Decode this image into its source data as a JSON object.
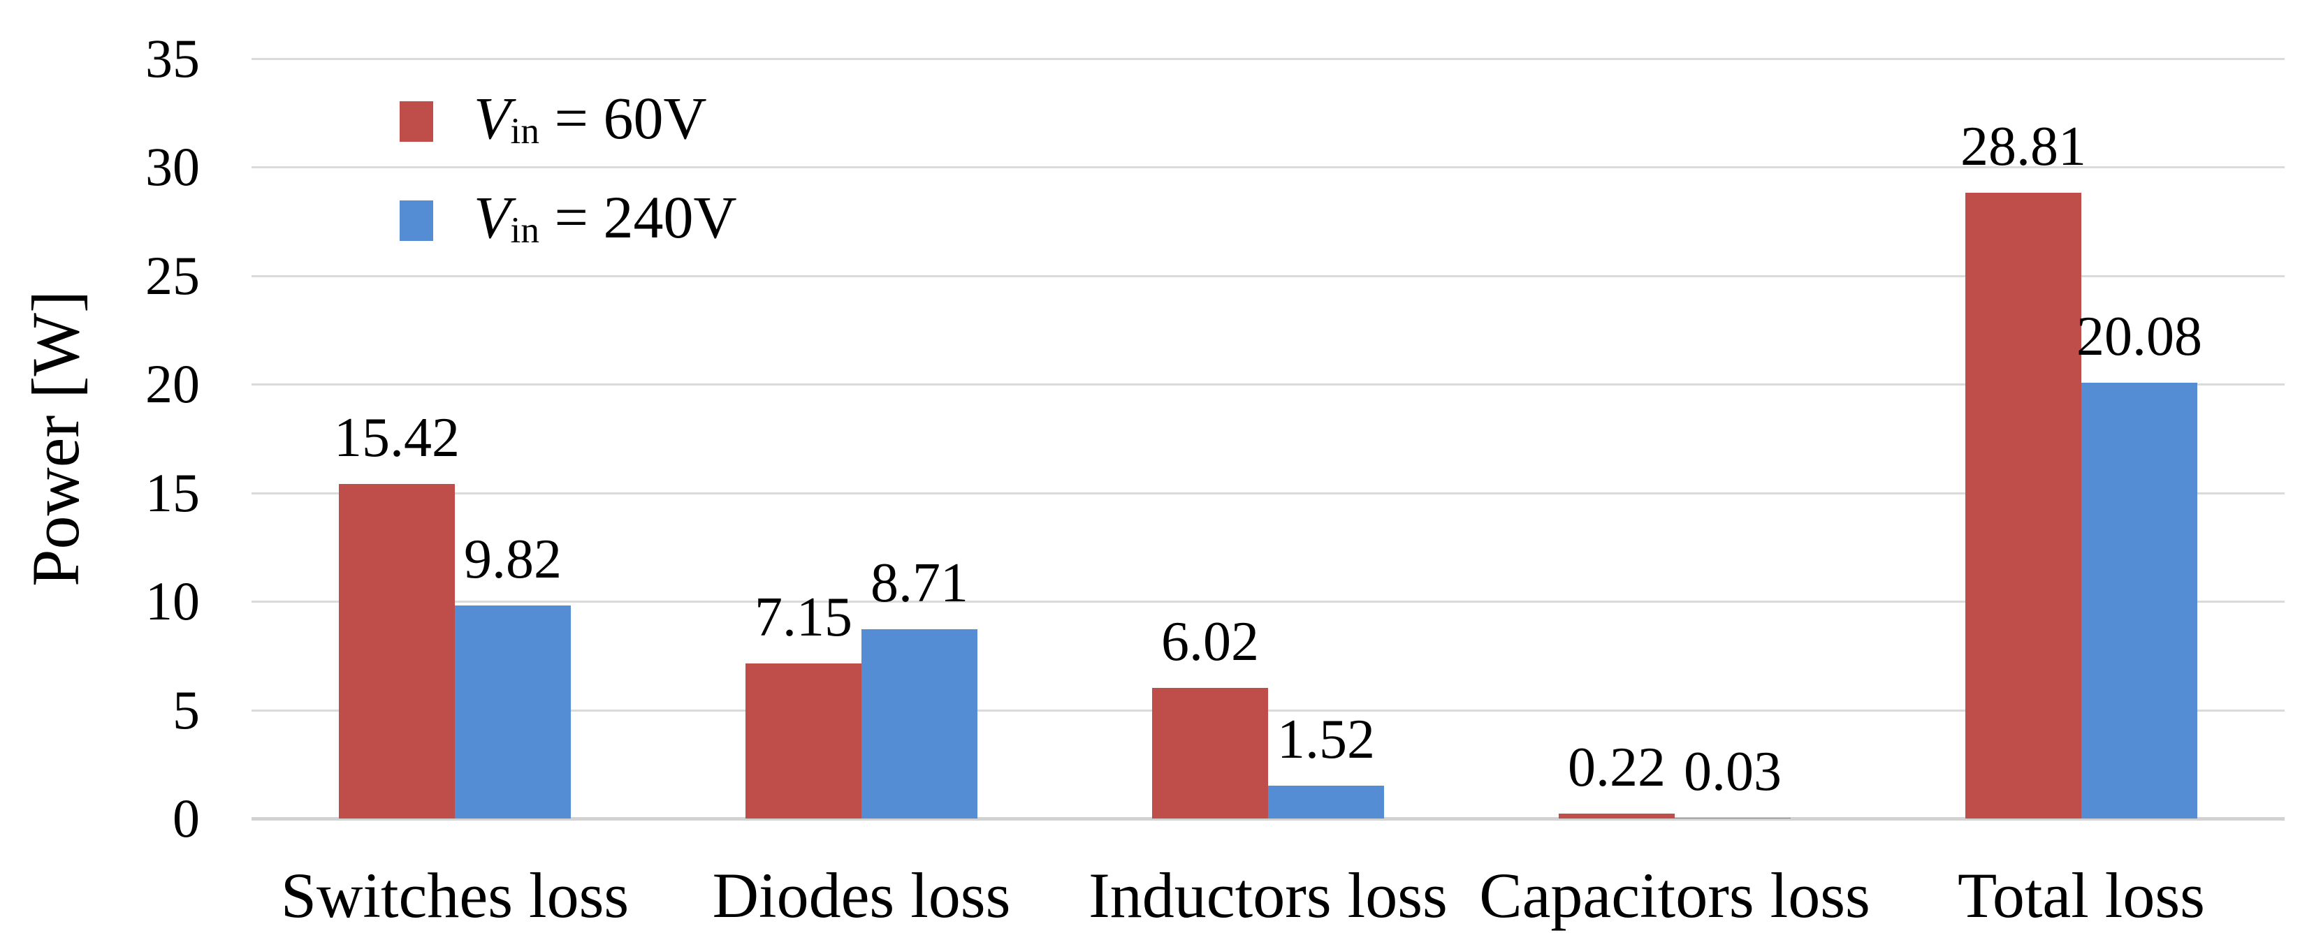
{
  "figure": {
    "background": "#ffffff",
    "text_color": "#000000",
    "gridline_color": "#DADADA",
    "baseline_color": "#D2D2D2"
  },
  "chart_data": {
    "type": "bar",
    "title": "",
    "xlabel": "",
    "ylabel": "Power [W]",
    "ylim": [
      0,
      35
    ],
    "yticks": [
      0,
      5,
      10,
      15,
      20,
      25,
      30,
      35
    ],
    "grid": "horizontal",
    "legend_position": "top-left-inside",
    "categories": [
      "Switches loss",
      "Diodes loss",
      "Inductors loss",
      "Capacitors loss",
      "Total loss"
    ],
    "series": [
      {
        "name": "Vin = 60V",
        "label_symbol": "V",
        "label_subscript": "in",
        "label_suffix": " = 60V",
        "color": "#BF4E4B",
        "values": [
          15.42,
          7.15,
          6.02,
          0.22,
          28.81
        ],
        "value_labels": [
          "15.42",
          "7.15",
          "6.02",
          "0.22",
          "28.81"
        ]
      },
      {
        "name": "Vin = 240V",
        "label_symbol": "V",
        "label_subscript": "in",
        "label_suffix": " = 240V",
        "color": "#548DD4",
        "values": [
          9.82,
          8.71,
          1.52,
          0.03,
          20.08
        ],
        "value_labels": [
          "9.82",
          "8.71",
          "1.52",
          "0.03",
          "20.08"
        ]
      }
    ]
  }
}
